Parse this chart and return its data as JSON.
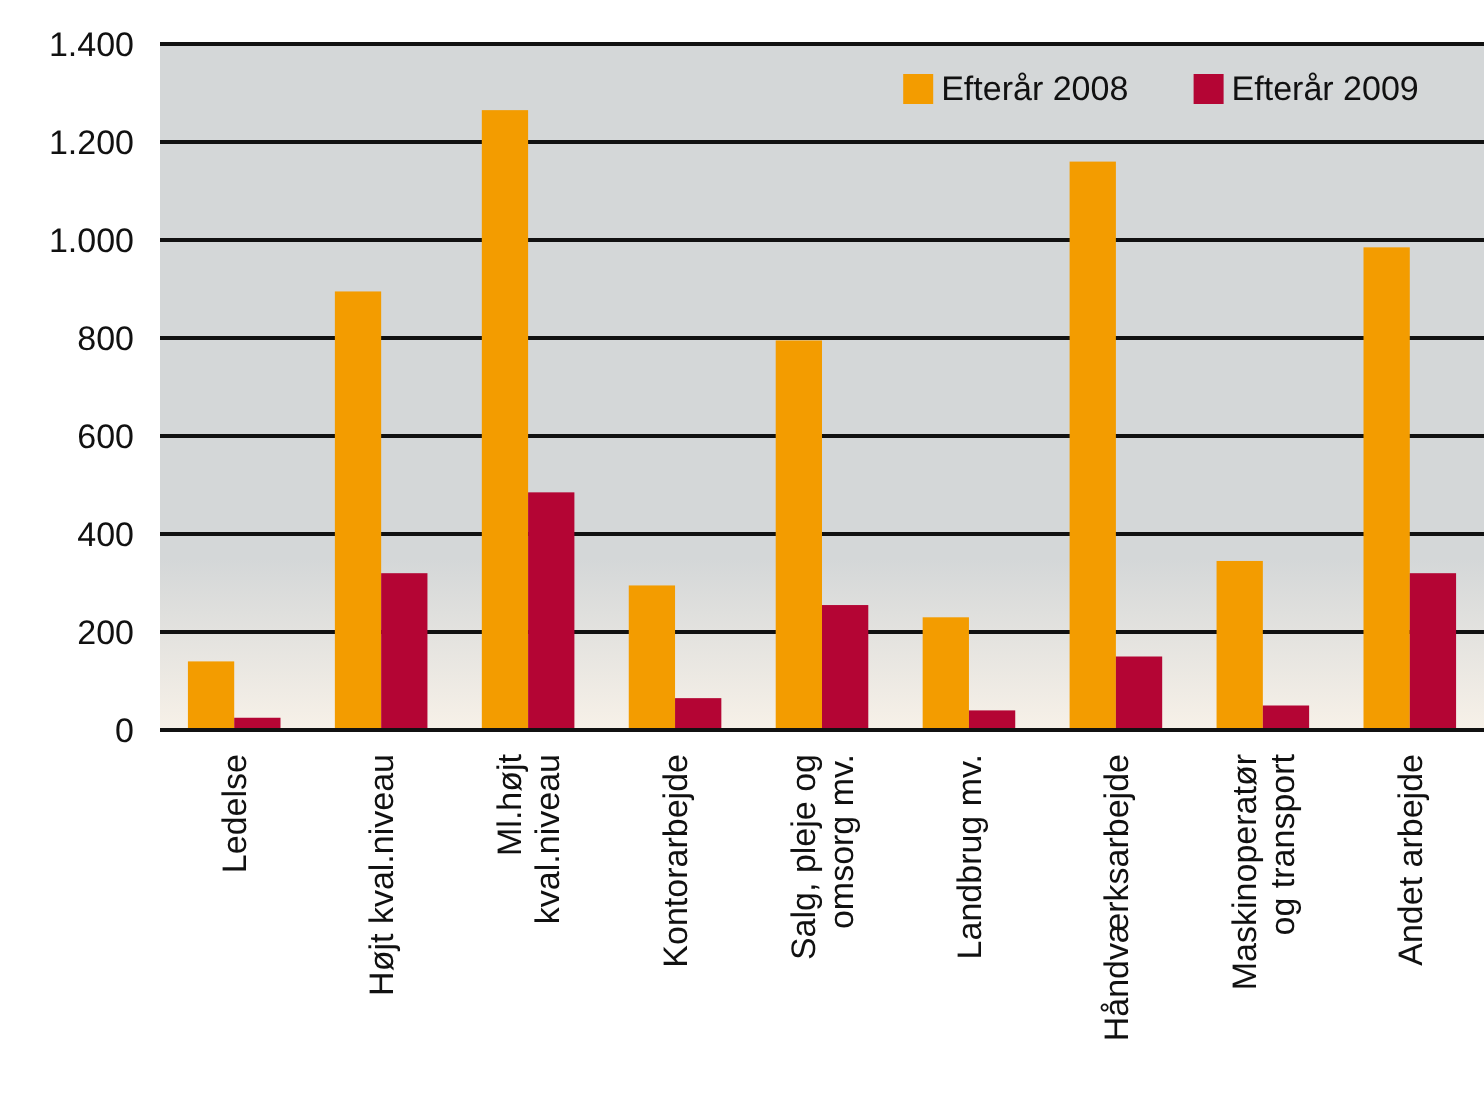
{
  "chart_data": {
    "type": "bar",
    "categories": [
      "Ledelse",
      "Højt kval.niveau",
      "Ml.højt kval.niveau",
      "Kontorarbejde",
      "Salg, pleje og omsorg mv.",
      "Landbrug mv.",
      "Håndværksarbejde",
      "Maskinoperatør og transport",
      "Andet arbejde"
    ],
    "series": [
      {
        "name": "Efterår 2008",
        "color": "#f39c00",
        "values": [
          140,
          895,
          1265,
          295,
          795,
          230,
          1160,
          345,
          985
        ]
      },
      {
        "name": "Efterår 2009",
        "color": "#b40534",
        "values": [
          25,
          320,
          485,
          65,
          255,
          40,
          150,
          50,
          320
        ]
      }
    ],
    "ylim": [
      0,
      1400
    ],
    "yticks": [
      {
        "value": 0,
        "label": "0"
      },
      {
        "value": 200,
        "label": "200"
      },
      {
        "value": 400,
        "label": "400"
      },
      {
        "value": 600,
        "label": "600"
      },
      {
        "value": 800,
        "label": "800"
      },
      {
        "value": 1000,
        "label": "1.000"
      },
      {
        "value": 1200,
        "label": "1.200"
      },
      {
        "value": 1400,
        "label": "1.400"
      }
    ],
    "grid": "y",
    "legend": "top right"
  }
}
